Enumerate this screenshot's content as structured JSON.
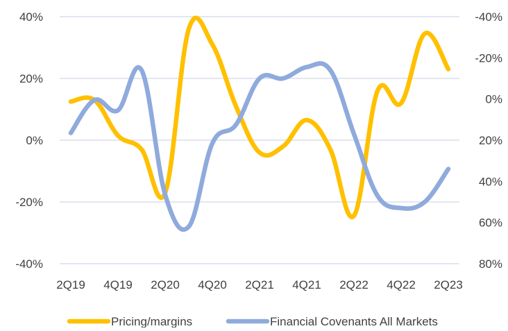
{
  "chart_data": {
    "type": "line",
    "categories": [
      "2Q19",
      "3Q19",
      "4Q19",
      "1Q20",
      "2Q20",
      "3Q20",
      "4Q20",
      "1Q21",
      "2Q21",
      "3Q21",
      "4Q21",
      "1Q22",
      "2Q22",
      "3Q22",
      "4Q22",
      "1Q23",
      "2Q23"
    ],
    "x_tick_labels": [
      "2Q19",
      "4Q19",
      "2Q20",
      "4Q20",
      "2Q21",
      "4Q21",
      "2Q22",
      "4Q22",
      "2Q23"
    ],
    "left_axis": {
      "ylim": [
        -40,
        40
      ],
      "ticks": [
        40,
        20,
        0,
        -20,
        -40
      ],
      "tick_labels": [
        "40%",
        "20%",
        "0%",
        "-20%",
        "-40%"
      ]
    },
    "right_axis": {
      "ylim": [
        -40,
        80
      ],
      "inverted": true,
      "ticks": [
        -40,
        -20,
        0,
        20,
        40,
        60,
        80
      ],
      "tick_labels": [
        "-40%",
        "-20%",
        "0%",
        "20%",
        "40%",
        "60%",
        "80%"
      ]
    },
    "grid": true,
    "legend": "bottom",
    "series": [
      {
        "name": "Pricing/margins",
        "axis": "left",
        "color": "#FFC000",
        "values": [
          12.5,
          13,
          1.5,
          -3,
          -17,
          36,
          31,
          11,
          -4,
          -2,
          6.5,
          -3,
          -24.5,
          16,
          12,
          34.5,
          23
        ]
      },
      {
        "name": "Financial Covenants All Markets",
        "axis": "right",
        "color": "#8FAADC",
        "values": [
          16.5,
          0.5,
          5.5,
          -14,
          46.5,
          62,
          21.5,
          12.5,
          -10,
          -10,
          -15.5,
          -14,
          17,
          47,
          53,
          50,
          34
        ]
      }
    ]
  }
}
